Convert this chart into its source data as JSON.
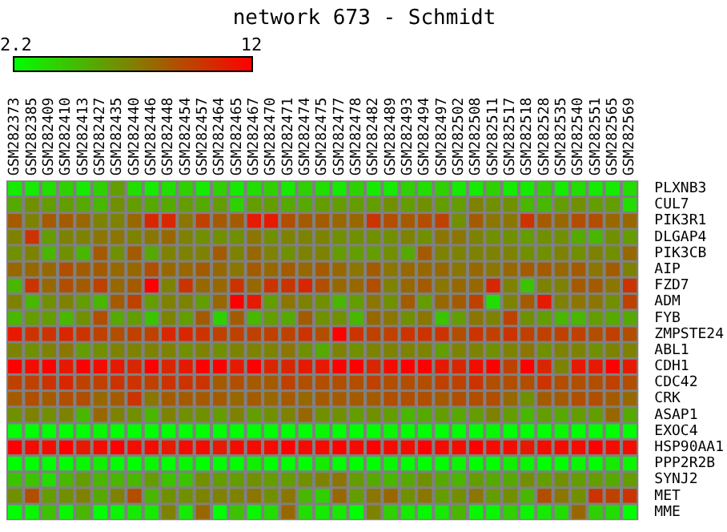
{
  "chart_data": {
    "type": "heatmap",
    "title": "network 673 - Schmidt",
    "categories": [
      "GSM282373",
      "GSM282385",
      "GSM282409",
      "GSM282410",
      "GSM282413",
      "GSM282427",
      "GSM282435",
      "GSM282440",
      "GSM282446",
      "GSM282448",
      "GSM282454",
      "GSM282457",
      "GSM282464",
      "GSM282465",
      "GSM282467",
      "GSM282470",
      "GSM282471",
      "GSM282474",
      "GSM282475",
      "GSM282477",
      "GSM282478",
      "GSM282482",
      "GSM282489",
      "GSM282493",
      "GSM282494",
      "GSM282497",
      "GSM282502",
      "GSM282508",
      "GSM282511",
      "GSM282517",
      "GSM282518",
      "GSM282528",
      "GSM282535",
      "GSM282540",
      "GSM282551",
      "GSM282565",
      "GSM282569"
    ],
    "y_categories": [
      "PLXNB3",
      "CUL7",
      "PIK3R1",
      "DLGAP4",
      "PIK3CB",
      "AIP",
      "FZD7",
      "ADM",
      "FYB",
      "ZMPSTE24",
      "ABL1",
      "CDH1",
      "CDC42",
      "CRK",
      "ASAP1",
      "EXOC4",
      "HSP90AA1",
      "PPP2R2B",
      "SYNJ2",
      "MET",
      "MME"
    ],
    "cells": [
      [
        3,
        3,
        3.5,
        4,
        3,
        4,
        6,
        3.5,
        3,
        3.5,
        4,
        3,
        4,
        3,
        3.5,
        4,
        3,
        4,
        3.5,
        3,
        4,
        3,
        3,
        4,
        3.5,
        4,
        3,
        3,
        4,
        3,
        3,
        4,
        3,
        3.5,
        3,
        3,
        3.5
      ],
      [
        5.5,
        6.5,
        6,
        6,
        5.5,
        5,
        6.5,
        6,
        5.5,
        5.5,
        6,
        5.5,
        6,
        4,
        6,
        6,
        5.5,
        5.5,
        6,
        6,
        6,
        6,
        6.5,
        6,
        6.5,
        6,
        6,
        7,
        6.5,
        6.5,
        5,
        5,
        6,
        6.5,
        6,
        6,
        3.5
      ],
      [
        8.5,
        7,
        8.5,
        8.5,
        8,
        7,
        7,
        8,
        10.5,
        10.5,
        7.5,
        9.5,
        8.5,
        8.5,
        11,
        11,
        9,
        8.5,
        8.5,
        8,
        8,
        10,
        9,
        8.5,
        9,
        9.5,
        6.5,
        8.5,
        7.5,
        7.5,
        10,
        8.5,
        8,
        9,
        9,
        8,
        8
      ],
      [
        7,
        10,
        6,
        7,
        7,
        7.5,
        7.5,
        7,
        7.5,
        8,
        7,
        6.5,
        6.5,
        6.5,
        7.5,
        6.5,
        7,
        7,
        7,
        6.5,
        6.5,
        6.5,
        6.5,
        7,
        6.5,
        7.5,
        7.5,
        7,
        6.5,
        6.5,
        6,
        6.5,
        6.5,
        5.5,
        5,
        6.5,
        6
      ],
      [
        6.5,
        7,
        5,
        6.5,
        5,
        8.5,
        6.5,
        8.5,
        5.5,
        7,
        7,
        7,
        8.5,
        7,
        8,
        7,
        6.5,
        7,
        7,
        6,
        6,
        6,
        6.5,
        5.5,
        8.5,
        7,
        7,
        7,
        7,
        7,
        6.5,
        6.5,
        7,
        6.5,
        7,
        6.5,
        8
      ],
      [
        8,
        8,
        8,
        9,
        8.5,
        8.5,
        8,
        8,
        9,
        8,
        8,
        8.5,
        8,
        7.5,
        8.5,
        8,
        8.5,
        8,
        8.5,
        8,
        7.5,
        8.5,
        7.5,
        8,
        8,
        8,
        7.5,
        8,
        7.5,
        8,
        8.5,
        8.5,
        8,
        8.5,
        7.5,
        8.5,
        7
      ],
      [
        5,
        10,
        8,
        9,
        8.5,
        9.5,
        8,
        8.5,
        12,
        7,
        10,
        8,
        8,
        10,
        8,
        10,
        10,
        10.5,
        9,
        8,
        8,
        9,
        7,
        8,
        8.5,
        7.5,
        8,
        8,
        10.5,
        7,
        4.5,
        7,
        7,
        8.5,
        8.5,
        7.5,
        10
      ],
      [
        7,
        5,
        6.5,
        7,
        6,
        5,
        8.5,
        9.5,
        6,
        7,
        7,
        6,
        8,
        12,
        11,
        6,
        7.5,
        7,
        6.5,
        5,
        6,
        7.5,
        6.5,
        8.5,
        6,
        8,
        8.5,
        9.5,
        3.5,
        7,
        8.5,
        11,
        7,
        7.5,
        7.5,
        6.5,
        9.5
      ],
      [
        5,
        6,
        6,
        5,
        6.5,
        9,
        5.5,
        6,
        4.5,
        7,
        6,
        8.5,
        4,
        8.5,
        5,
        6,
        5.5,
        8.5,
        6.5,
        6.5,
        5,
        8,
        7.5,
        6.5,
        7.5,
        4.5,
        6,
        7.5,
        7,
        9.5,
        6.5,
        6,
        5,
        5,
        6,
        5.5,
        5.5
      ],
      [
        11,
        10,
        10,
        10.5,
        10,
        9.5,
        9,
        9.5,
        9.5,
        10.5,
        10.5,
        10,
        9.5,
        9.5,
        9.5,
        9.5,
        9.5,
        10,
        9,
        12,
        10,
        9.5,
        9.5,
        10,
        10,
        10,
        9,
        10,
        9.5,
        10,
        9.5,
        9.5,
        9.5,
        9.5,
        9,
        9.5,
        9
      ],
      [
        7,
        6.5,
        7,
        7.5,
        6,
        6.5,
        7,
        7,
        7,
        7,
        6.5,
        7,
        6.5,
        7,
        7,
        7,
        7.5,
        6.5,
        5.5,
        7,
        6.5,
        7,
        7,
        7,
        7,
        6,
        7,
        7,
        6.5,
        7,
        7.5,
        6.5,
        7,
        7,
        6.5,
        7,
        7
      ],
      [
        12,
        11.5,
        12,
        11,
        12,
        11.5,
        11,
        10.5,
        12,
        10.5,
        11,
        12,
        12,
        11,
        12,
        10.5,
        10.5,
        11,
        11,
        12,
        12,
        10.5,
        11.5,
        12,
        12,
        11,
        10.5,
        11.5,
        12,
        9.5,
        12,
        10.5,
        7,
        11,
        11,
        12,
        11
      ],
      [
        9.5,
        9.5,
        10,
        10.5,
        9.5,
        9.5,
        10,
        10,
        9.5,
        10,
        10,
        10,
        8.5,
        9,
        8.5,
        8.5,
        9.5,
        9,
        9,
        9,
        9,
        9.5,
        9,
        9,
        9,
        9.5,
        9.5,
        10,
        9,
        9,
        9,
        10,
        9,
        9,
        9,
        9.5,
        9
      ],
      [
        8.5,
        9,
        8.5,
        9,
        9,
        8,
        8.5,
        10,
        7.5,
        8.5,
        8.5,
        8.5,
        8.5,
        8,
        8.5,
        8,
        8.5,
        8,
        8.5,
        8.5,
        8.5,
        8.5,
        9,
        9,
        9,
        8.5,
        9,
        9,
        9,
        8,
        6.5,
        8.5,
        8.5,
        9,
        9,
        8.5,
        8
      ],
      [
        6.5,
        7,
        6.5,
        7,
        5,
        8,
        7,
        6.5,
        5,
        7,
        6.5,
        6.5,
        6,
        7,
        6,
        6.5,
        7,
        8,
        6.5,
        6.5,
        6,
        6.5,
        6,
        5,
        5.5,
        6,
        5.5,
        6,
        7,
        6,
        5,
        6,
        5.5,
        6,
        6,
        8,
        5.5
      ],
      [
        2.2,
        2.2,
        2.2,
        2.2,
        2.2,
        2.5,
        2.2,
        2.2,
        2.2,
        2.2,
        2.2,
        2.2,
        2.2,
        2.2,
        2.2,
        2.2,
        2.2,
        2.2,
        2.5,
        2.2,
        2.2,
        2.2,
        2.5,
        2.2,
        2.2,
        2.2,
        2.2,
        2.2,
        2.5,
        2.2,
        2.2,
        2.2,
        2.5,
        2.2,
        2.2,
        2.2,
        2.2
      ],
      [
        12,
        11.5,
        11.5,
        12,
        11,
        11.5,
        12,
        11.5,
        11.5,
        11,
        11.5,
        11.5,
        11,
        11.5,
        11.5,
        11.5,
        12,
        11.5,
        11.5,
        12,
        11.5,
        12,
        11.5,
        11.5,
        12,
        11.5,
        11.5,
        12,
        11.5,
        11.5,
        11,
        11.5,
        11.5,
        11.5,
        12,
        11.5,
        11.5
      ],
      [
        2.2,
        2.2,
        2.2,
        2.2,
        2.5,
        2.8,
        2.2,
        2.2,
        2.5,
        2.2,
        2.5,
        2.2,
        2.2,
        2.2,
        2.8,
        2.2,
        2.2,
        2.2,
        3,
        2.2,
        2.2,
        2.2,
        2.5,
        2.2,
        2.2,
        2.2,
        2.5,
        2.2,
        2.2,
        2.8,
        2.5,
        2.2,
        2.2,
        2.5,
        2.2,
        3,
        2.5
      ],
      [
        4.5,
        4.5,
        3.5,
        5,
        6,
        5,
        5,
        5,
        6,
        4.5,
        4.5,
        6.5,
        6,
        6,
        6.5,
        6,
        6,
        6.5,
        7,
        7.5,
        6,
        5.5,
        5,
        5.5,
        6.5,
        5.5,
        5,
        6,
        5.5,
        5.5,
        6.5,
        6,
        6.5,
        6,
        6,
        5.5,
        6
      ],
      [
        6.5,
        9,
        6,
        6.5,
        7,
        5.5,
        7,
        9,
        5,
        6.5,
        6.5,
        7,
        7,
        7,
        7.5,
        6.5,
        7.5,
        5,
        4,
        8,
        6,
        7.5,
        8,
        6.5,
        7.5,
        6,
        6.5,
        7.5,
        6,
        6.5,
        5,
        9,
        7.5,
        6.5,
        10,
        9.5,
        10
      ],
      [
        2.2,
        2.5,
        4.5,
        2.5,
        5,
        2.2,
        2.5,
        3,
        3,
        7,
        3,
        8,
        2.2,
        4.5,
        2.5,
        3.5,
        8,
        3.5,
        3,
        3,
        2.2,
        7,
        4,
        3,
        2.5,
        3,
        5,
        2.5,
        2.5,
        4,
        2.5,
        3,
        3.5,
        8,
        4,
        3.5,
        2.2
      ]
    ],
    "clim": [
      2.2,
      12
    ],
    "cticks": [
      2.2,
      12
    ]
  }
}
